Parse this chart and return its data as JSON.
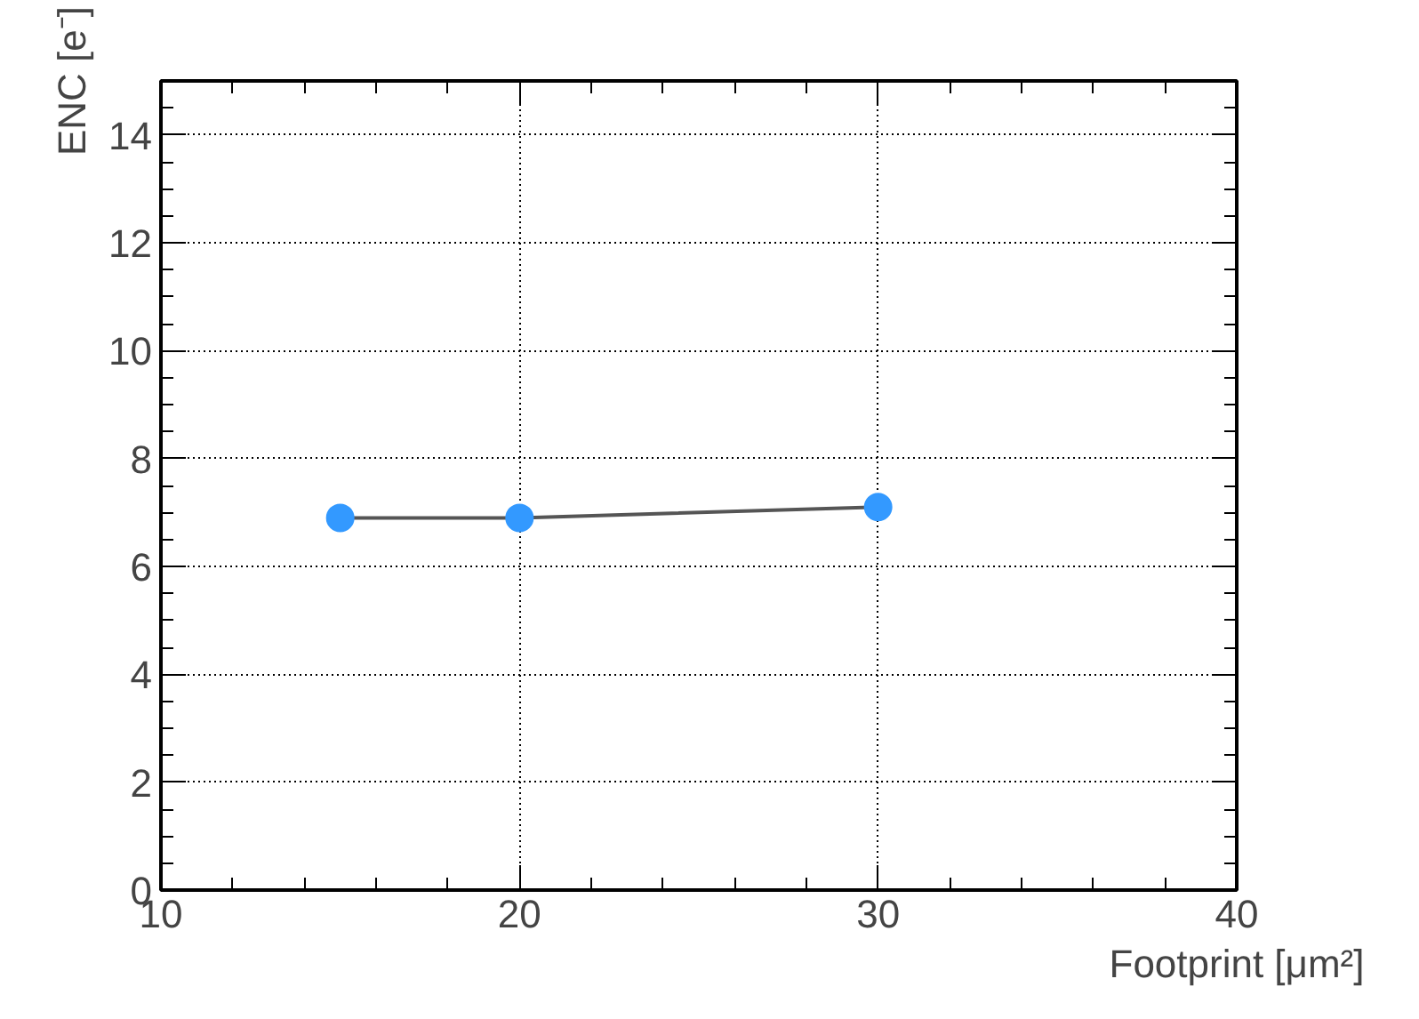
{
  "chart_data": {
    "type": "line",
    "xlabel": "Footprint [μm²]",
    "ylabel": "ENC [e⁻]",
    "x": [
      15,
      20,
      30
    ],
    "series": [
      {
        "color": "#3399ff",
        "values": [
          6.9,
          6.9,
          7.1
        ]
      }
    ],
    "xlim": [
      10,
      40
    ],
    "xticks": [
      10,
      20,
      30,
      40
    ],
    "ylim": [
      0,
      15
    ],
    "yticks": [
      0,
      2,
      4,
      6,
      8,
      10,
      12,
      14
    ],
    "grid": true,
    "marker": "circle",
    "line_style": "solid"
  }
}
